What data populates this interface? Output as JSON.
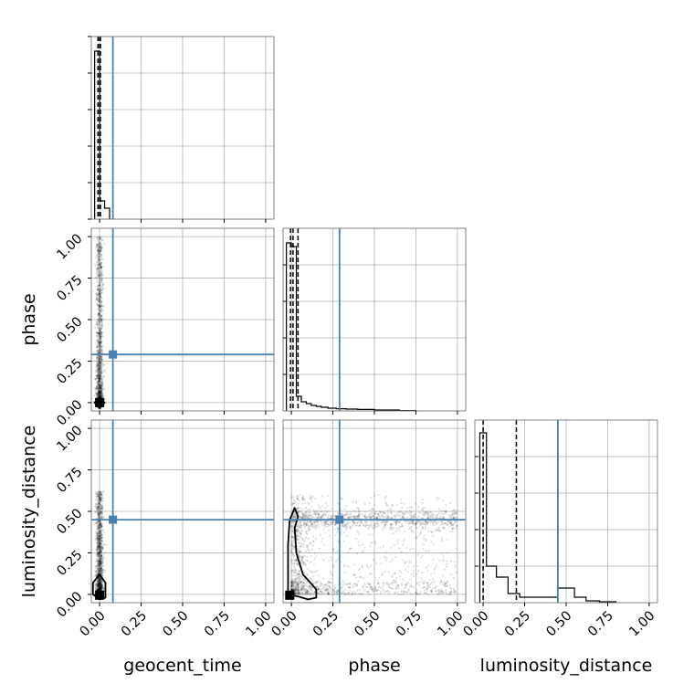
{
  "chart_data": {
    "type": "corner",
    "parameters": [
      "geocent_time",
      "phase",
      "luminosity_distance"
    ],
    "axis_labels": {
      "x": [
        "geocent_time",
        "phase",
        "luminosity_distance"
      ],
      "y": [
        "",
        "phase",
        "luminosity_distance"
      ]
    },
    "range": [
      -0.05,
      1.05
    ],
    "ticks": [
      0.0,
      0.25,
      0.5,
      0.75,
      1.0
    ],
    "tick_labels": [
      "0.00",
      "0.25",
      "0.50",
      "0.75",
      "1.00"
    ],
    "grid": true,
    "colors": {
      "truth": "#4682b4",
      "hist": "#000000",
      "scatter": "#000000",
      "frame": "#808080",
      "grid": "#b0b0b0"
    },
    "truths": {
      "geocent_time": 0.08,
      "phase": 0.29,
      "luminosity_distance": 0.45
    },
    "quantiles": {
      "geocent_time": [
        -0.01,
        0.0,
        0.005
      ],
      "phase": [
        -0.005,
        0.01,
        0.04
      ],
      "luminosity_distance": [
        0.0,
        0.2
      ]
    },
    "histograms": {
      "geocent_time": {
        "edges": [
          -0.03,
          0.0,
          0.03,
          0.06,
          0.09
        ],
        "counts": [
          0.92,
          0.1,
          0.06,
          0.0
        ]
      },
      "phase": {
        "edges": [
          -0.03,
          0.0,
          0.03,
          0.06,
          0.09,
          0.12,
          0.15,
          0.18,
          0.22,
          0.27,
          0.33,
          0.4,
          0.5,
          0.65,
          0.75
        ],
        "counts": [
          0.92,
          0.9,
          0.08,
          0.05,
          0.04,
          0.03,
          0.025,
          0.02,
          0.015,
          0.012,
          0.01,
          0.008,
          0.005,
          0.002
        ]
      },
      "luminosity_distance": {
        "edges": [
          -0.02,
          0.02,
          0.08,
          0.15,
          0.22,
          0.3,
          0.38,
          0.45,
          0.5,
          0.55,
          0.62,
          0.7,
          0.8
        ],
        "counts": [
          0.93,
          0.2,
          0.14,
          0.05,
          0.03,
          0.03,
          0.03,
          0.08,
          0.08,
          0.03,
          0.01,
          0.005
        ]
      }
    },
    "scatter": {
      "phase_vs_geocent_time": {
        "x_center": 0.0,
        "x_spread": 0.02,
        "y_min": 0.0,
        "y_max": 1.0,
        "points": 1500
      },
      "luminosity_distance_vs_geocent_time": {
        "x_center": 0.0,
        "x_spread": 0.02,
        "y_min": 0.0,
        "y_max": 0.62,
        "points": 1500
      },
      "luminosity_distance_vs_phase": {
        "x_min": 0.0,
        "x_max": 1.0,
        "y_min": 0.0,
        "y_max": 0.6,
        "points": 2200
      }
    },
    "contours": {
      "phase_vs_geocent_time": [
        [
          -0.03,
          0.0
        ],
        [
          0.0,
          -0.035
        ],
        [
          0.03,
          0.0
        ],
        [
          0.0,
          0.035
        ]
      ],
      "luminosity_distance_vs_geocent_time": [
        [
          -0.04,
          0.0
        ],
        [
          -0.04,
          0.07
        ],
        [
          0.0,
          0.12
        ],
        [
          0.035,
          0.07
        ],
        [
          0.035,
          -0.02
        ],
        [
          0.0,
          -0.03
        ]
      ],
      "luminosity_distance_vs_phase": [
        [
          -0.02,
          0.0
        ],
        [
          -0.02,
          0.3
        ],
        [
          -0.01,
          0.45
        ],
        [
          0.02,
          0.52
        ],
        [
          0.04,
          0.47
        ],
        [
          0.02,
          0.4
        ],
        [
          0.03,
          0.25
        ],
        [
          0.07,
          0.12
        ],
        [
          0.15,
          0.03
        ],
        [
          0.15,
          -0.02
        ],
        [
          0.1,
          -0.03
        ],
        [
          0.05,
          -0.015
        ]
      ]
    },
    "medians": {
      "phase_vs_geocent_time": [
        0.0,
        0.0
      ],
      "luminosity_distance_vs_geocent_time": [
        0.0,
        -0.005
      ],
      "luminosity_distance_vs_phase": [
        -0.01,
        -0.005
      ]
    }
  }
}
